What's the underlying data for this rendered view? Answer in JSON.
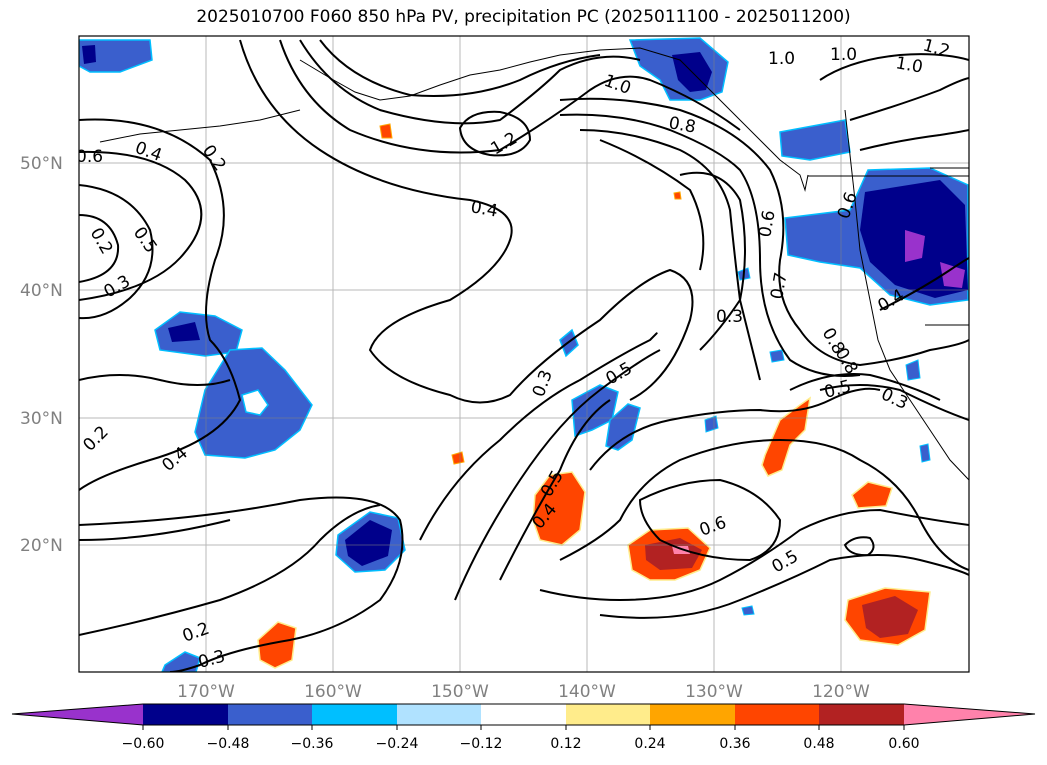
{
  "title": "2025010700 F060 850 hPa PV, precipitation PC (2025011100 - 2025011200)",
  "map": {
    "lat_labels": [
      "50°N",
      "40°N",
      "30°N",
      "20°N"
    ],
    "lon_labels": [
      "170°W",
      "160°W",
      "150°W",
      "140°W",
      "130°W",
      "120°W"
    ],
    "extent": {
      "lon_min": -180,
      "lon_max": -110,
      "lat_min": 10,
      "lat_max": 60
    },
    "grid": true
  },
  "contour_labels": [
    "0.6",
    "0.4",
    "0.2",
    "0.5",
    "0.2",
    "0.3",
    "1.2",
    "0.4",
    "1.0",
    "0.8",
    "1.0",
    "1.0",
    "1.2",
    "1.0",
    "0.6",
    "0.6",
    "0.7",
    "0.8",
    "0.8",
    "0.4",
    "0.3",
    "0.5",
    "0.3",
    "0.5",
    "0.5",
    "0.4",
    "0.6",
    "0.5",
    "0.3",
    "0.4",
    "0.2",
    "0.3",
    "0.2"
  ],
  "colorbar": {
    "ticks": [
      "−0.60",
      "−0.48",
      "−0.36",
      "−0.24",
      "−0.12",
      "0.12",
      "0.24",
      "0.36",
      "0.48",
      "0.60"
    ],
    "colors": [
      "#9932CC",
      "#00008B",
      "#3A5FCD",
      "#00BFFF",
      "#B0E2FF",
      "#FFFFFF",
      "#FFEC8B",
      "#FFA500",
      "#FF4500",
      "#B22222",
      "#FF82AB"
    ]
  }
}
